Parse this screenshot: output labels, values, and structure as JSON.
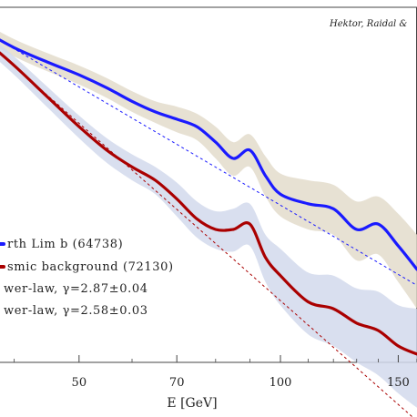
{
  "chart_data": {
    "type": "line",
    "credit": "Hektor, Raidal &",
    "xlabel": "E [GeV]",
    "x_ticks": [
      50,
      70,
      100,
      150
    ],
    "x_scale": "log",
    "xlim": [
      36,
      160
    ],
    "y_scale": "log",
    "ylim": [
      0.35,
      1.1
    ],
    "grid": false,
    "legend_position": "lower-left",
    "legend": [
      {
        "label": "rth Lim b (64738)",
        "color": "#1a1aff",
        "style": "solid"
      },
      {
        "label": "smic background (72130)",
        "color": "#aa0000",
        "style": "solid"
      },
      {
        "label": "wer-law, γ=2.87±0.04",
        "color": "#aa0000",
        "style": "dashed"
      },
      {
        "label": "wer-law, γ=2.58±0.03",
        "color": "#1a1aff",
        "style": "dashed"
      }
    ],
    "series": [
      {
        "name": "rth Lim b (64738)",
        "color": "#1a1aff",
        "band_color": "#e3dccb",
        "x": [
          36,
          40,
          45,
          50,
          55,
          60,
          65,
          70,
          75,
          80,
          85,
          90,
          95,
          100,
          110,
          120,
          130,
          140,
          150,
          160
        ],
        "y": [
          1.08,
          1.02,
          0.97,
          0.93,
          0.89,
          0.85,
          0.82,
          0.8,
          0.78,
          0.74,
          0.7,
          0.72,
          0.66,
          0.62,
          0.6,
          0.59,
          0.55,
          0.56,
          0.52,
          0.48
        ],
        "band": [
          0.03,
          0.03,
          0.03,
          0.03,
          0.03,
          0.03,
          0.03,
          0.035,
          0.035,
          0.04,
          0.04,
          0.04,
          0.045,
          0.045,
          0.05,
          0.05,
          0.055,
          0.055,
          0.06,
          0.06
        ]
      },
      {
        "name": "smic background (72130)",
        "color": "#aa0000",
        "band_color": "#d2d9ec",
        "x": [
          36,
          40,
          45,
          50,
          55,
          60,
          65,
          70,
          75,
          80,
          85,
          90,
          95,
          100,
          110,
          120,
          130,
          140,
          150,
          160
        ],
        "y": [
          1.05,
          0.96,
          0.86,
          0.78,
          0.72,
          0.68,
          0.65,
          0.61,
          0.57,
          0.55,
          0.55,
          0.56,
          0.5,
          0.47,
          0.43,
          0.42,
          0.4,
          0.39,
          0.37,
          0.36
        ],
        "band": [
          0.03,
          0.03,
          0.03,
          0.03,
          0.03,
          0.03,
          0.03,
          0.035,
          0.035,
          0.035,
          0.04,
          0.04,
          0.04,
          0.045,
          0.045,
          0.05,
          0.05,
          0.055,
          0.055,
          0.06
        ]
      }
    ],
    "fits": [
      {
        "name": "wer-law, γ=2.87±0.04",
        "color": "#aa0000",
        "gamma": 2.87,
        "anchor_x": 36,
        "anchor_y": 1.05
      },
      {
        "name": "wer-law, γ=2.58±0.03",
        "color": "#1a1aff",
        "gamma": 2.58,
        "anchor_x": 36,
        "anchor_y": 1.08
      }
    ]
  }
}
